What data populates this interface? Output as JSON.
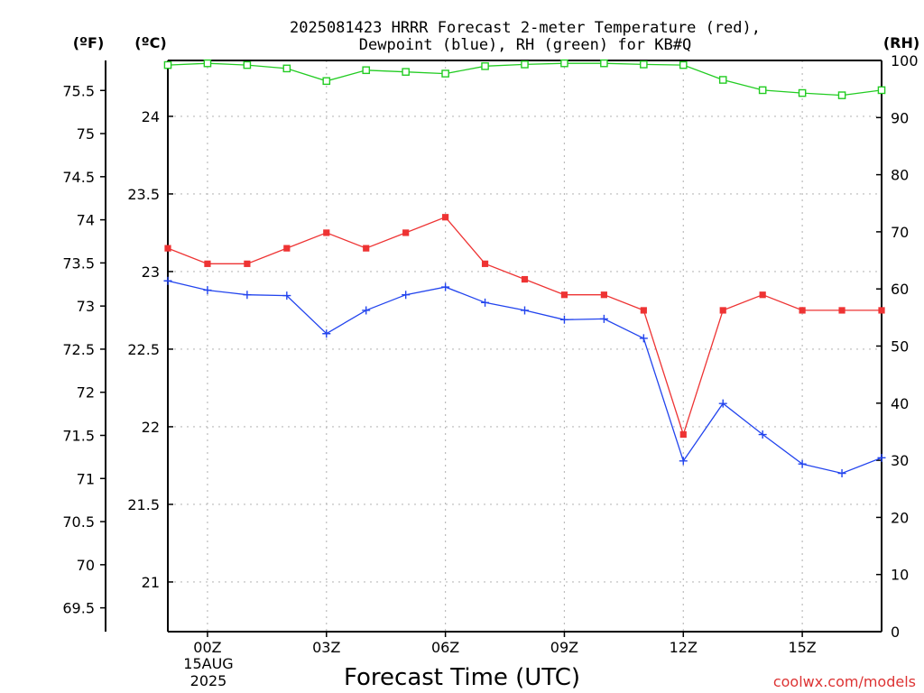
{
  "chart_data": {
    "type": "line",
    "title_line1": "2025081423 HRRR Forecast 2-meter Temperature (red),",
    "title_line2": "Dewpoint (blue), RH (green) for KB#Q",
    "xlabel": "Forecast Time (UTC)",
    "credit": "coolwx.com/models",
    "x_hours": [
      -1,
      0,
      1,
      2,
      3,
      4,
      5,
      6,
      7,
      8,
      9,
      10,
      11,
      12,
      13,
      14,
      15,
      16,
      17
    ],
    "x_ticks": [
      {
        "hour": 0,
        "label": "00Z"
      },
      {
        "hour": 3,
        "label": "03Z"
      },
      {
        "hour": 6,
        "label": "06Z"
      },
      {
        "hour": 9,
        "label": "09Z"
      },
      {
        "hour": 12,
        "label": "12Z"
      },
      {
        "hour": 15,
        "label": "15Z"
      }
    ],
    "date_label": [
      "15AUG",
      "2025"
    ],
    "xlim": [
      -1,
      17
    ],
    "axes": {
      "celsius": {
        "unit": "(ºC)",
        "lim": [
          20.68,
          24.36
        ],
        "ticks": [
          {
            "v": 21,
            "label": "21"
          },
          {
            "v": 21.5,
            "label": "21.5"
          },
          {
            "v": 22,
            "label": "22"
          },
          {
            "v": 22.5,
            "label": "22.5"
          },
          {
            "v": 23,
            "label": "23"
          },
          {
            "v": 23.5,
            "label": "23.5"
          },
          {
            "v": 24,
            "label": "24"
          }
        ]
      },
      "fahrenheit": {
        "unit": "(ºF)",
        "ticks": [
          {
            "v": 69.5,
            "label": "69.5"
          },
          {
            "v": 70,
            "label": "70"
          },
          {
            "v": 70.5,
            "label": "70.5"
          },
          {
            "v": 71,
            "label": "71"
          },
          {
            "v": 71.5,
            "label": "71.5"
          },
          {
            "v": 72,
            "label": "72"
          },
          {
            "v": 72.5,
            "label": "72.5"
          },
          {
            "v": 73,
            "label": "73"
          },
          {
            "v": 73.5,
            "label": "73.5"
          },
          {
            "v": 74,
            "label": "74"
          },
          {
            "v": 74.5,
            "label": "74.5"
          },
          {
            "v": 75,
            "label": "75"
          },
          {
            "v": 75.5,
            "label": "75.5"
          }
        ]
      },
      "rh": {
        "unit": "(RH)",
        "lim": [
          0,
          100
        ],
        "ticks": [
          {
            "v": 0,
            "label": "0"
          },
          {
            "v": 10,
            "label": "10"
          },
          {
            "v": 20,
            "label": "20"
          },
          {
            "v": 30,
            "label": "30"
          },
          {
            "v": 40,
            "label": "40"
          },
          {
            "v": 50,
            "label": "50"
          },
          {
            "v": 60,
            "label": "60"
          },
          {
            "v": 70,
            "label": "70"
          },
          {
            "v": 80,
            "label": "80"
          },
          {
            "v": 90,
            "label": "90"
          },
          {
            "v": 100,
            "label": "100"
          }
        ]
      }
    },
    "series": [
      {
        "color": "#ee3333",
        "marker": "filled-square",
        "axis": "celsius",
        "values": [
          23.15,
          23.05,
          23.05,
          23.15,
          23.25,
          23.15,
          23.25,
          23.35,
          23.05,
          22.95,
          22.85,
          22.85,
          22.75,
          21.95,
          22.75,
          22.85,
          22.75,
          22.75,
          22.75
        ]
      },
      {
        "color": "#2244ee",
        "marker": "plus",
        "axis": "celsius",
        "values": [
          22.94,
          22.88,
          22.85,
          22.845,
          22.6,
          22.75,
          22.85,
          22.9,
          22.8,
          22.75,
          22.69,
          22.695,
          22.57,
          21.78,
          22.15,
          21.95,
          21.76,
          21.7,
          21.8
        ]
      },
      {
        "color": "#22cc22",
        "marker": "open-square",
        "axis": "rh",
        "values": [
          99.2,
          99.5,
          99.2,
          98.6,
          96.4,
          98.3,
          98.0,
          97.7,
          99.0,
          99.3,
          99.5,
          99.5,
          99.3,
          99.2,
          96.6,
          94.8,
          94.3,
          93.9,
          94.8
        ]
      }
    ],
    "grid": true
  }
}
